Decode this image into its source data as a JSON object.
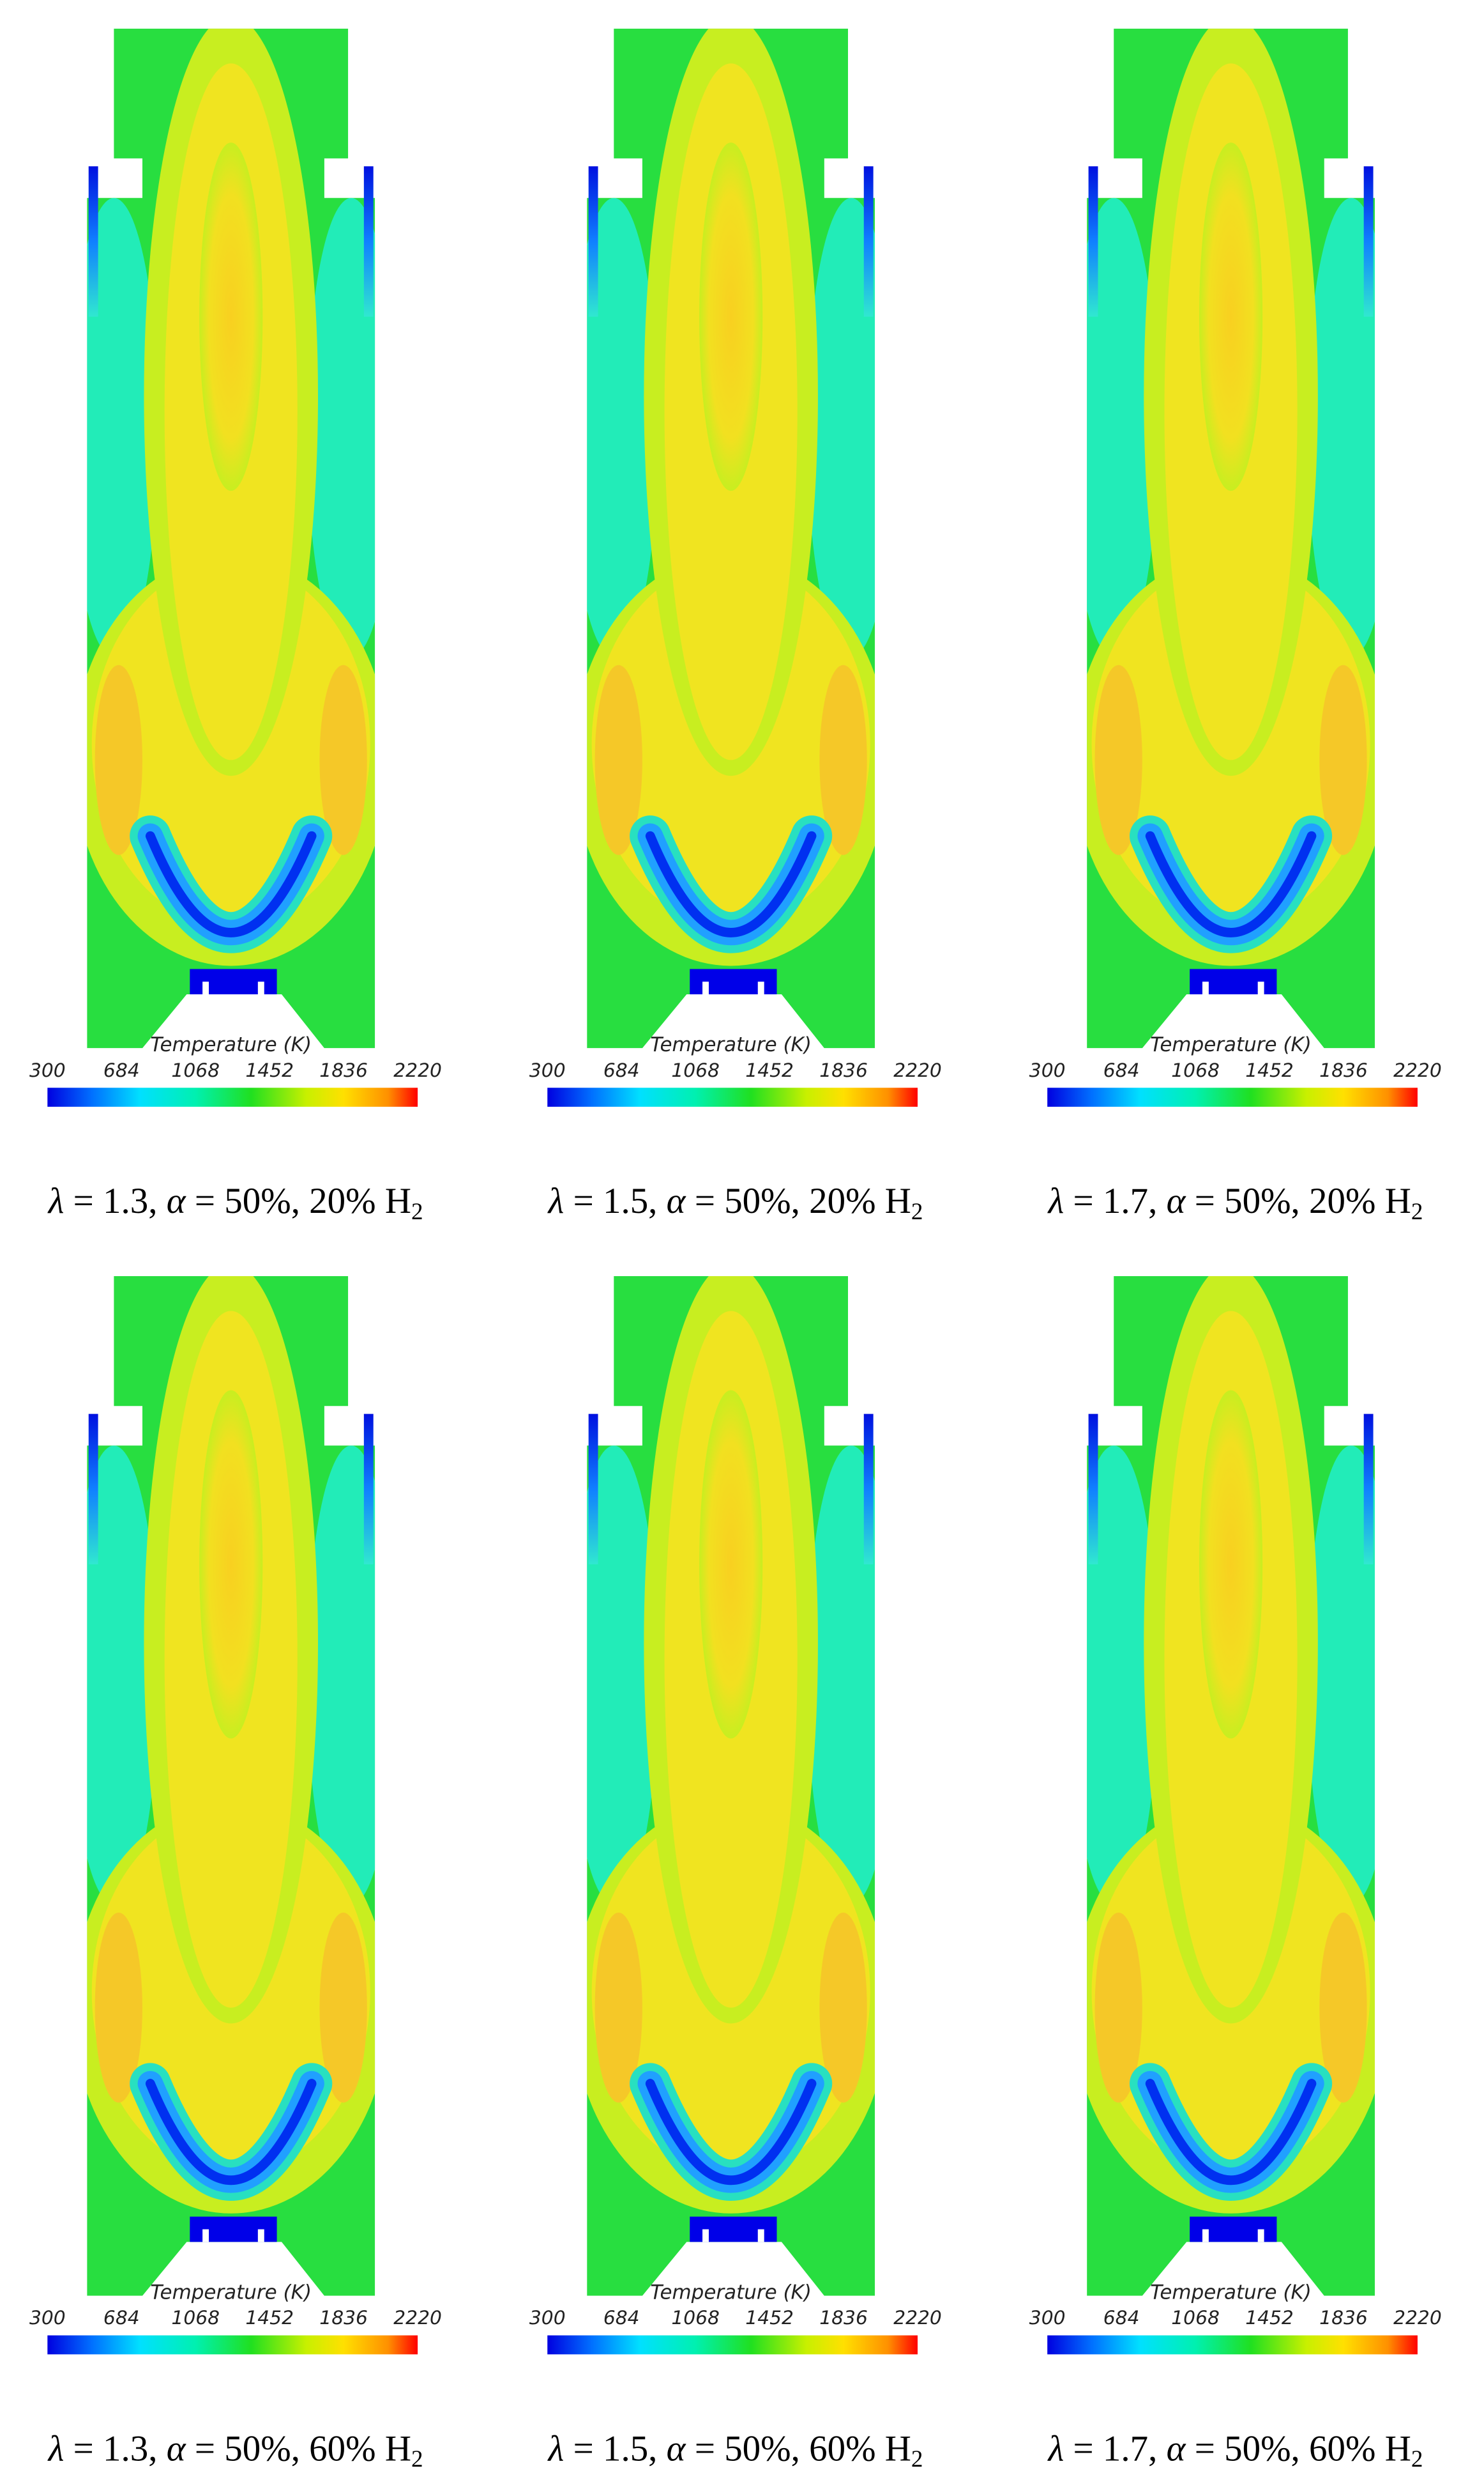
{
  "panels": [
    {
      "colorbar": {
        "title": "Temperature (K)",
        "ticks": [
          300,
          684,
          1068,
          1452,
          1836,
          2220
        ]
      },
      "caption": [
        "λ",
        " = 1.3, ",
        "α",
        " = 50%, 20% H",
        "2"
      ]
    },
    {
      "colorbar": {
        "title": "Temperature (K)",
        "ticks": [
          300,
          684,
          1068,
          1452,
          1836,
          2220
        ]
      },
      "caption": [
        "λ",
        " = 1.5, ",
        "α",
        " = 50%, 20% H",
        "2"
      ]
    },
    {
      "colorbar": {
        "title": "Temperature (K)",
        "ticks": [
          300,
          684,
          1068,
          1452,
          1836,
          2220
        ]
      },
      "caption": [
        "λ",
        " = 1.7, ",
        "α",
        " = 50%, 20% H",
        "2"
      ]
    },
    {
      "colorbar": {
        "title": "Temperature (K)",
        "ticks": [
          300,
          684,
          1068,
          1452,
          1836,
          2220
        ]
      },
      "caption": [
        "λ",
        " = 1.3, ",
        "α",
        " = 50%, 60% H",
        "2"
      ]
    },
    {
      "colorbar": {
        "title": "Temperature (K)",
        "ticks": [
          300,
          684,
          1068,
          1452,
          1836,
          2220
        ]
      },
      "caption": [
        "λ",
        " = 1.5, ",
        "α",
        " = 50%, 60% H",
        "2"
      ]
    },
    {
      "colorbar": {
        "title": "Temperature (K)",
        "ticks": [
          300,
          684,
          1068,
          1452,
          1836,
          2220
        ]
      },
      "caption": [
        "λ",
        " = 1.7, ",
        "α",
        " = 50%, 60% H",
        "2"
      ]
    }
  ]
}
